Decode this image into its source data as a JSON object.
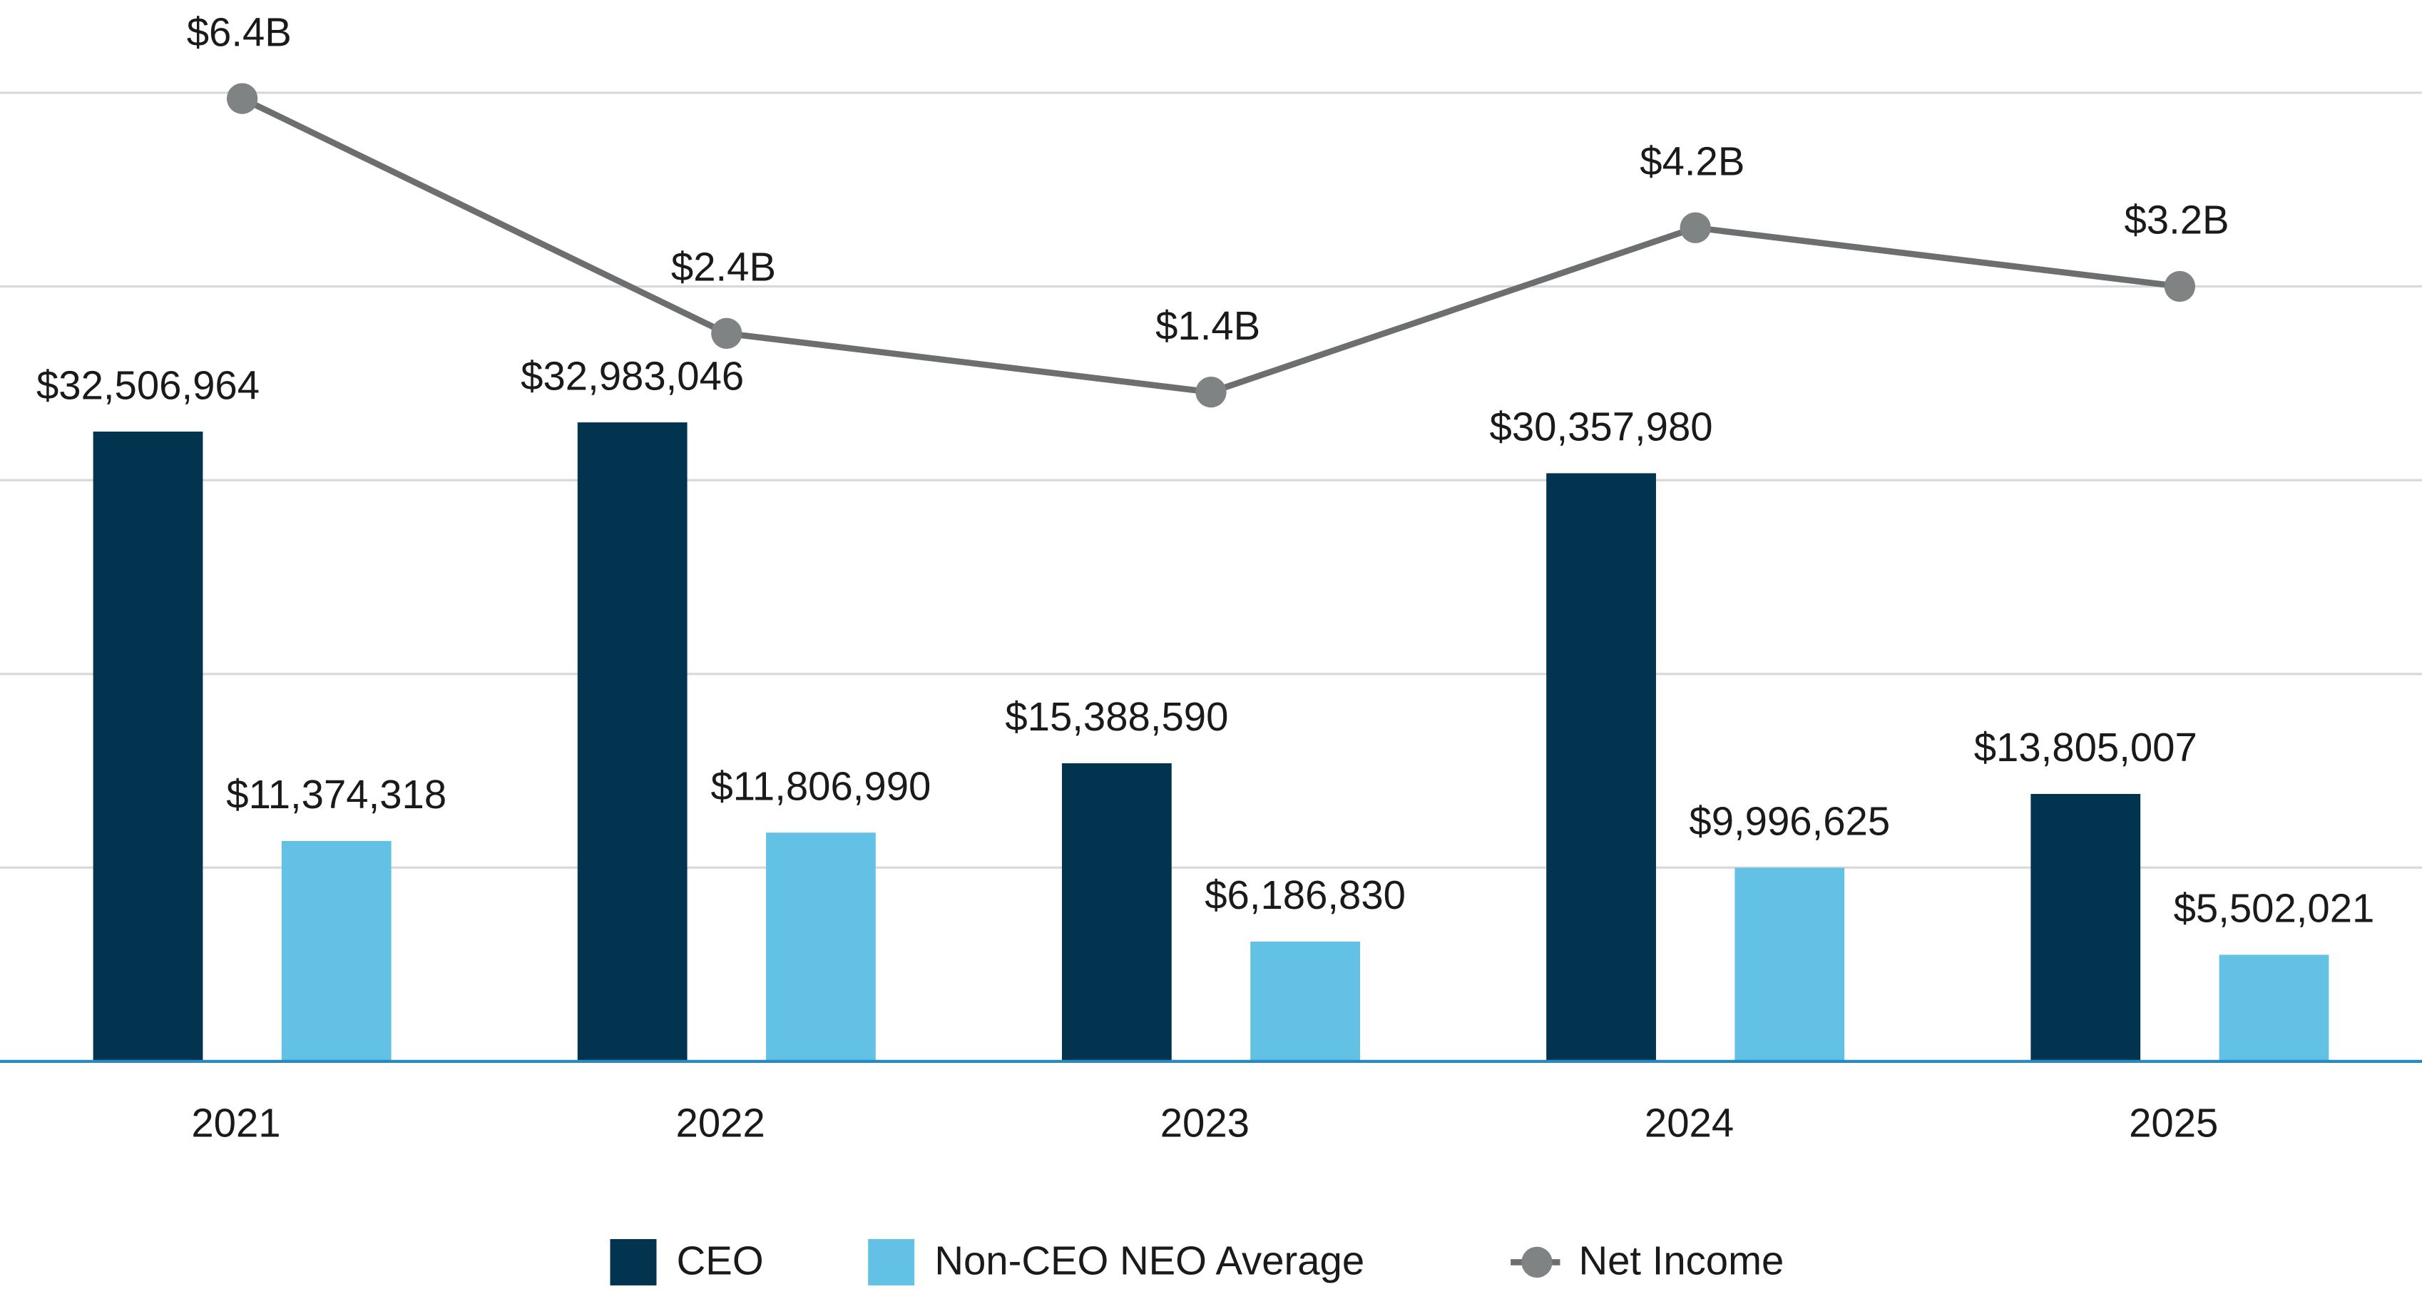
{
  "chart_data": {
    "type": "bar",
    "categories": [
      "2021",
      "2022",
      "2023",
      "2024",
      "2025"
    ],
    "series": [
      {
        "name": "CEO",
        "color": "#02344f",
        "values": [
          32506964,
          32983046,
          15388590,
          30357980,
          13805007
        ],
        "value_labels": [
          "$32,506,964",
          "$32,983,046",
          "$15,388,590",
          "$30,357,980",
          "$13,805,007"
        ]
      },
      {
        "name": "Non-CEO NEO Average",
        "color": "#62c1e5",
        "values": [
          11374318,
          11806990,
          6186830,
          9996625,
          5502021
        ],
        "value_labels": [
          "$11,374,318",
          "$11,806,990",
          "$6,186,830",
          "$9,996,625",
          "$5,502,021"
        ]
      },
      {
        "name": "Net Income",
        "type": "line",
        "axis": "y2",
        "color": "#6d6e70",
        "marker_color": "#808384",
        "values": [
          6.4,
          2.4,
          1.4,
          4.2,
          3.2
        ],
        "value_labels": [
          "$6.4B",
          "$2.4B",
          "$1.4B",
          "$4.2B",
          "$3.2B"
        ]
      }
    ],
    "ylim": [
      0,
      50000000
    ],
    "yticks": [
      0,
      10000000,
      20000000,
      30000000,
      40000000,
      50000000
    ],
    "y2lim": [
      -10,
      6.5
    ],
    "grid": true,
    "legend": "bottom"
  }
}
